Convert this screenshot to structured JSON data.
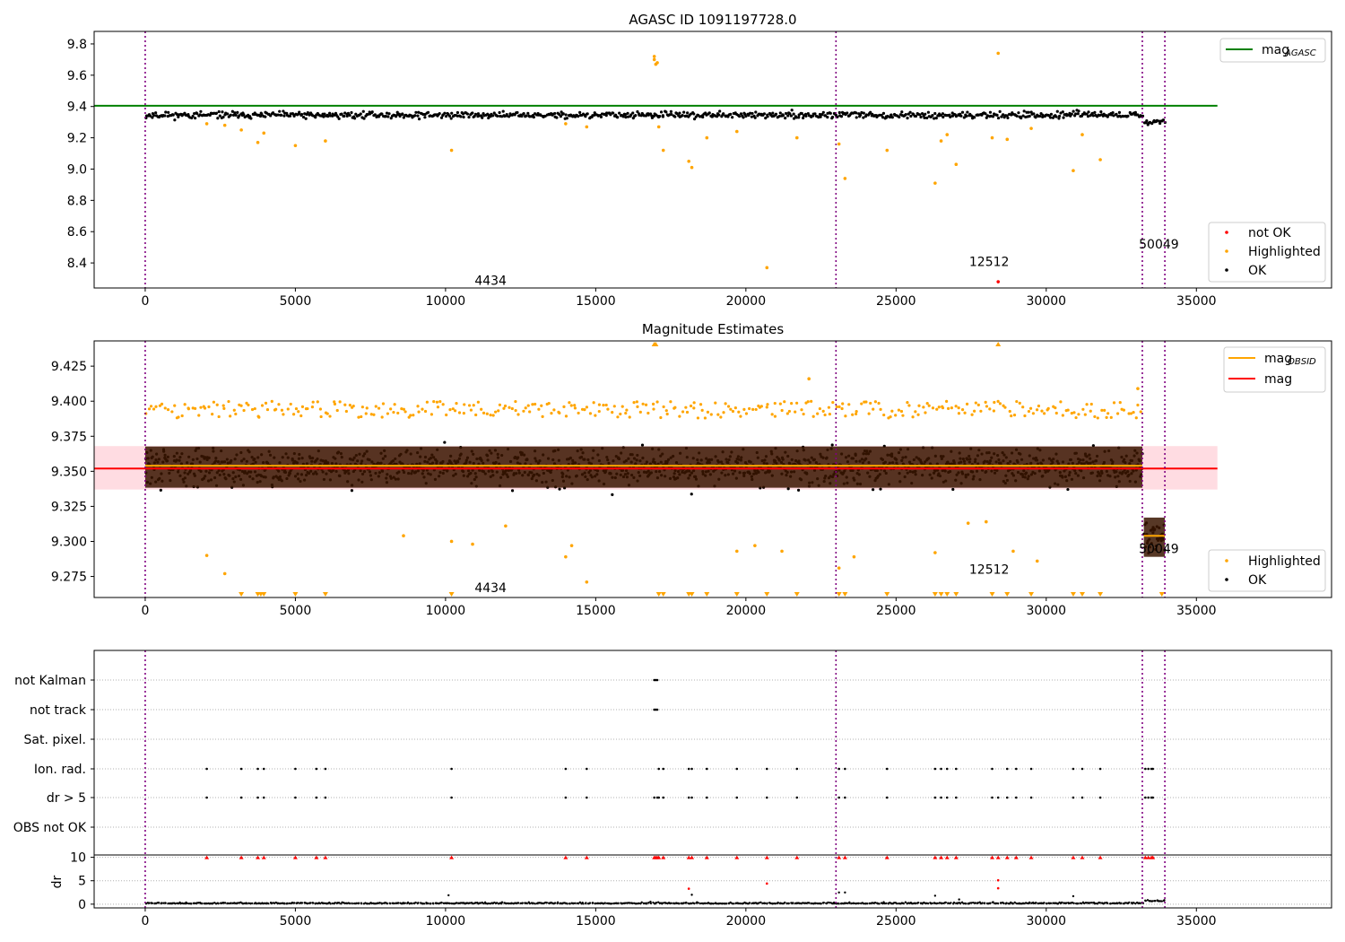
{
  "colors": {
    "ok": "#000000",
    "highlighted": "#ffa500",
    "not_ok": "#ff0000",
    "mag_agasc": "#008000",
    "mag": "#ff0000",
    "mag_obsid": "#ffa500",
    "band": "#ffc0cb",
    "vlines": "#800080"
  },
  "chart_data": [
    {
      "type": "scatter",
      "title": "AGASC ID 1091197728.0",
      "xlim": [
        -1700,
        39500
      ],
      "ylim": [
        8.24,
        9.88
      ],
      "xticks": [
        0,
        5000,
        10000,
        15000,
        20000,
        25000,
        30000,
        35000
      ],
      "yticks": [
        8.4,
        8.6,
        8.8,
        9.0,
        9.2,
        9.4,
        9.6,
        9.8
      ],
      "ytick_labels": [
        "8.4",
        "8.6",
        "8.8",
        "9.0",
        "9.2",
        "9.4",
        "9.6",
        "9.8"
      ],
      "obsid_boundaries": [
        0,
        23000,
        33200,
        33950
      ],
      "obsid_labels": [
        {
          "text": "4434",
          "x": 11500,
          "y": 8.29
        },
        {
          "text": "12512",
          "x": 28100,
          "y": 8.41
        },
        {
          "text": "50049",
          "x": 33750,
          "y": 8.52
        }
      ],
      "mag_agasc": {
        "value": 9.405,
        "x_range": [
          -1700,
          35700
        ]
      },
      "ok_band": [
        {
          "x": [
            0,
            33200
          ],
          "y": 9.345,
          "spread": 0.035
        },
        {
          "x": [
            33250,
            33950
          ],
          "y": 9.305,
          "spread": 0.03
        }
      ],
      "highlighted": [
        [
          2050,
          9.29
        ],
        [
          2650,
          9.28
        ],
        [
          3200,
          9.25
        ],
        [
          3750,
          9.17
        ],
        [
          3950,
          9.23
        ],
        [
          5000,
          9.15
        ],
        [
          6000,
          9.18
        ],
        [
          10200,
          9.12
        ],
        [
          14000,
          9.29
        ],
        [
          14700,
          9.27
        ],
        [
          16950,
          9.72
        ],
        [
          16950,
          9.7
        ],
        [
          17000,
          9.67
        ],
        [
          17050,
          9.68
        ],
        [
          17100,
          9.27
        ],
        [
          17250,
          9.12
        ],
        [
          18100,
          9.05
        ],
        [
          18200,
          9.01
        ],
        [
          18700,
          9.2
        ],
        [
          19700,
          9.24
        ],
        [
          21700,
          9.2
        ],
        [
          23100,
          9.16
        ],
        [
          23300,
          8.94
        ],
        [
          24700,
          9.12
        ],
        [
          26300,
          8.91
        ],
        [
          26500,
          9.18
        ],
        [
          26700,
          9.22
        ],
        [
          27000,
          9.03
        ],
        [
          28200,
          9.2
        ],
        [
          28400,
          9.74
        ],
        [
          28700,
          9.19
        ],
        [
          29500,
          9.26
        ],
        [
          30900,
          8.99
        ],
        [
          31200,
          9.22
        ],
        [
          31800,
          9.06
        ],
        [
          20700,
          8.37
        ]
      ],
      "not_ok": [
        [
          28400,
          8.28
        ]
      ],
      "legend_top": [
        {
          "label": "mag",
          "sub": "AGASC",
          "color_key": "mag_agasc"
        }
      ],
      "legend_bottom": [
        {
          "label": "not OK",
          "color_key": "not_ok"
        },
        {
          "label": "Highlighted",
          "color_key": "highlighted"
        },
        {
          "label": "OK",
          "color_key": "ok"
        }
      ]
    },
    {
      "type": "scatter",
      "title": "Magnitude Estimates",
      "xlim": [
        -1700,
        39500
      ],
      "ylim": [
        9.26,
        9.443
      ],
      "xticks": [
        0,
        5000,
        10000,
        15000,
        20000,
        25000,
        30000,
        35000
      ],
      "yticks": [
        9.275,
        9.3,
        9.325,
        9.35,
        9.375,
        9.4,
        9.425
      ],
      "ytick_labels": [
        "9.275",
        "9.300",
        "9.325",
        "9.350",
        "9.375",
        "9.400",
        "9.425"
      ],
      "obsid_boundaries": [
        0,
        23000,
        33200,
        33950
      ],
      "obsid_labels": [
        {
          "text": "4434",
          "x": 11500,
          "y": 9.267
        },
        {
          "text": "12512",
          "x": 28100,
          "y": 9.28
        },
        {
          "text": "50049",
          "x": 33750,
          "y": 9.295
        }
      ],
      "mag": {
        "value": 9.352,
        "band": [
          9.337,
          9.368
        ],
        "x_range": [
          -1700,
          35700
        ]
      },
      "mag_obsid": [
        {
          "x": [
            0,
            33200
          ],
          "value": 9.354
        },
        {
          "x": [
            33250,
            33950
          ],
          "value": 9.304
        }
      ],
      "ok_band": [
        {
          "x": [
            0,
            33200
          ],
          "y": 9.353,
          "spread": 0.021
        },
        {
          "x": [
            33250,
            33950
          ],
          "y": 9.303,
          "spread": 0.02
        }
      ],
      "highlighted_low_x": [
        3200,
        3750,
        3850,
        3950,
        5000,
        6000,
        10200,
        17100,
        17250,
        18100,
        18200,
        18700,
        19700,
        20700,
        21700,
        23100,
        23300,
        24700,
        26300,
        26500,
        26700,
        27000,
        28200,
        28700,
        29500,
        30900,
        31200,
        31800,
        33850
      ],
      "highlighted_high_x": [
        16950,
        17000,
        28400
      ],
      "highlighted_scatter": [
        [
          2050,
          9.29
        ],
        [
          2650,
          9.277
        ],
        [
          8600,
          9.304
        ],
        [
          10200,
          9.3
        ],
        [
          10900,
          9.298
        ],
        [
          12000,
          9.311
        ],
        [
          14000,
          9.289
        ],
        [
          14200,
          9.297
        ],
        [
          14700,
          9.271
        ],
        [
          19700,
          9.293
        ],
        [
          20300,
          9.297
        ],
        [
          21200,
          9.293
        ],
        [
          23100,
          9.281
        ],
        [
          23600,
          9.289
        ],
        [
          26300,
          9.292
        ],
        [
          27400,
          9.313
        ],
        [
          28000,
          9.314
        ],
        [
          28900,
          9.293
        ],
        [
          29700,
          9.286
        ],
        [
          33050,
          9.409
        ],
        [
          22100,
          9.416
        ]
      ],
      "legend_top": [
        {
          "label": "mag",
          "sub": "OBSID",
          "color_key": "mag_obsid"
        },
        {
          "label": "mag",
          "sub": "",
          "color_key": "mag"
        }
      ],
      "legend_bottom": [
        {
          "label": "Highlighted",
          "color_key": "highlighted"
        },
        {
          "label": "OK",
          "color_key": "ok"
        }
      ]
    },
    {
      "type": "scatter",
      "title": "",
      "xlim": [
        -1700,
        39500
      ],
      "flag_rows": [
        "not Kalman",
        "not track",
        "Sat. pixel.",
        "Ion. rad.",
        "dr > 5",
        "OBS not OK"
      ],
      "obsid_boundaries": [
        0,
        23000,
        33200,
        33950
      ],
      "flag_points": {
        "not Kalman": [
          16950,
          17000,
          17050
        ],
        "not track": [
          16950,
          17000,
          17050
        ],
        "Sat. pixel.": [],
        "Ion. rad.": [
          2050,
          3200,
          3750,
          3950,
          5000,
          5700,
          6000,
          10200,
          14000,
          14700,
          17100,
          17250,
          18100,
          18200,
          18700,
          19700,
          20700,
          21700,
          23100,
          23300,
          24700,
          26300,
          26500,
          26700,
          27000,
          28200,
          28700,
          29000,
          29500,
          30900,
          31200,
          31800,
          33300,
          33400,
          33500,
          33550
        ],
        "dr > 5": [
          2050,
          3200,
          3750,
          3950,
          5000,
          5700,
          6000,
          10200,
          14000,
          14700,
          16950,
          17050,
          17100,
          17250,
          18100,
          18200,
          18700,
          19700,
          20700,
          21700,
          23100,
          23300,
          24700,
          26300,
          26500,
          26700,
          27000,
          28200,
          28400,
          28700,
          29000,
          29500,
          30900,
          31200,
          31800,
          33300,
          33400,
          33500,
          33550
        ],
        "OBS not OK": []
      },
      "dr_yticks": [
        0,
        5,
        10
      ],
      "dr_ylim": [
        -0.8,
        10.5
      ],
      "dr_ylabel": "dr",
      "dr_xticks": [
        0,
        5000,
        10000,
        15000,
        20000,
        25000,
        30000,
        35000
      ],
      "dr_capped_x": [
        2050,
        3200,
        3750,
        3950,
        5000,
        5700,
        6000,
        10200,
        14000,
        14700,
        16950,
        17000,
        17050,
        17100,
        17250,
        18100,
        18200,
        18700,
        19700,
        20700,
        21700,
        23100,
        23300,
        24700,
        26300,
        26500,
        26700,
        27000,
        28200,
        28400,
        28700,
        29000,
        29500,
        30900,
        31200,
        31800,
        33300,
        33400,
        33500,
        33550
      ],
      "dr_red_points": [
        [
          18100,
          3.3
        ],
        [
          20700,
          4.4
        ],
        [
          28400,
          5.1
        ],
        [
          28400,
          3.4
        ]
      ],
      "dr_gray_points": [
        [
          10100,
          1.9
        ],
        [
          23100,
          2.5
        ],
        [
          23300,
          2.5
        ],
        [
          26300,
          1.8
        ],
        [
          27100,
          1.0
        ],
        [
          30900,
          1.7
        ],
        [
          18200,
          2.0
        ]
      ]
    }
  ]
}
